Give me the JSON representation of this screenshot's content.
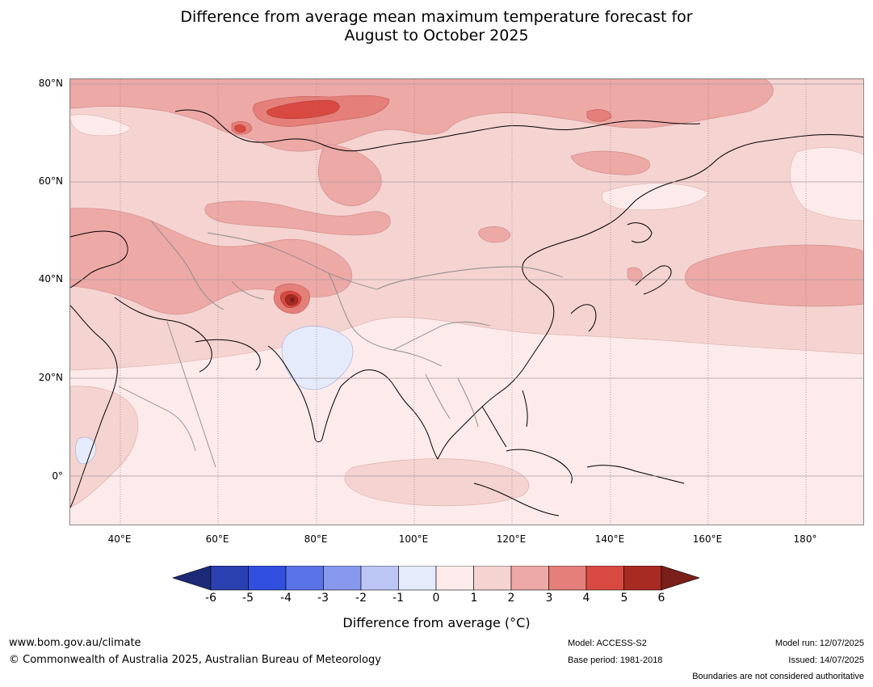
{
  "title_line1": "Difference from average mean maximum temperature forecast for",
  "title_line2": "August to October 2025",
  "axes": {
    "latitude_ticks": [
      "80°N",
      "60°N",
      "40°N",
      "20°N",
      "0°"
    ],
    "longitude_ticks": [
      "40°E",
      "60°E",
      "80°E",
      "100°E",
      "120°E",
      "140°E",
      "160°E",
      "180°"
    ],
    "lat_range": [
      -10,
      80
    ],
    "lon_range": [
      30,
      192
    ],
    "grid": true
  },
  "colorbar": {
    "tick_labels": [
      "-6",
      "-5",
      "-4",
      "-3",
      "-2",
      "-1",
      "0",
      "1",
      "2",
      "3",
      "4",
      "5",
      "6"
    ],
    "colors": [
      "#1c2a78",
      "#2a3fb0",
      "#3150e0",
      "#5a73e6",
      "#8898ee",
      "#bcc6f5",
      "#e6ebfb",
      "#fcebea",
      "#f5d3d1",
      "#eda9a6",
      "#e47f79",
      "#d84a41",
      "#a72a23",
      "#7a1f1a"
    ],
    "extend": "both",
    "title": "Difference from average (°C)"
  },
  "map_regions": [
    {
      "name": "arctic-europe",
      "category": "2 to 3"
    },
    {
      "name": "scandinavia-russia-core",
      "category": "4 to 5"
    },
    {
      "name": "west-russia",
      "category": "1 to 2"
    },
    {
      "name": "central-asia",
      "category": "2 to 3"
    },
    {
      "name": "karakoram-hotspot",
      "category": "5 to 6"
    },
    {
      "name": "india",
      "category": "-1 to 0"
    },
    {
      "name": "north-pacific",
      "category": "2 to 3"
    },
    {
      "name": "east-africa",
      "category": "-1 to 0"
    },
    {
      "name": "tropics",
      "category": "0 to 1"
    }
  ],
  "footer": {
    "url": "www.bom.gov.au/climate",
    "copyright": "© Commonwealth of Australia 2025, Australian Bureau of Meteorology",
    "model": "Model: ACCESS-S2",
    "base_period": "Base period: 1981-2018",
    "model_run": "Model run: 12/07/2025",
    "issued": "Issued: 14/07/2025",
    "disclaimer": "Boundaries are not considered authoritative"
  }
}
